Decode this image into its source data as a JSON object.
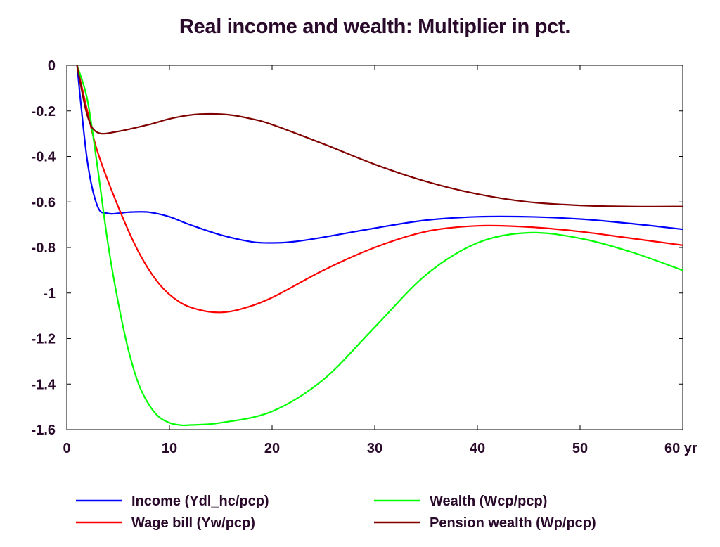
{
  "chart_data": {
    "type": "line",
    "title": "Real income and wealth: Multiplier in pct.",
    "xlabel": "",
    "ylabel": "",
    "xlim": [
      0,
      60
    ],
    "ylim": [
      -1.6,
      0
    ],
    "x_ticks": [
      0,
      10,
      20,
      30,
      40,
      50,
      60
    ],
    "x_tick_labels": [
      "0",
      "10",
      "20",
      "30",
      "40",
      "50",
      "60 yr"
    ],
    "y_ticks": [
      0,
      -0.2,
      -0.4,
      -0.6,
      -0.8,
      -1,
      -1.2,
      -1.4,
      -1.6
    ],
    "y_tick_labels": [
      "0",
      "-0.2",
      "-0.4",
      "-0.6",
      "-0.8",
      "-1",
      "-1.2",
      "-1.4",
      "-1.6"
    ],
    "grid": false,
    "legend_position": "bottom",
    "series": [
      {
        "name": "Income (Ydl_hc/pcp)",
        "color": "#0000ff",
        "x": [
          1,
          2,
          3,
          4,
          5,
          6,
          8,
          10,
          12,
          15,
          18,
          20,
          22,
          25,
          30,
          35,
          40,
          45,
          50,
          55,
          60
        ],
        "y": [
          0,
          -0.42,
          -0.62,
          -0.65,
          -0.65,
          -0.645,
          -0.645,
          -0.665,
          -0.7,
          -0.745,
          -0.775,
          -0.78,
          -0.775,
          -0.755,
          -0.715,
          -0.68,
          -0.665,
          -0.665,
          -0.675,
          -0.695,
          -0.72
        ]
      },
      {
        "name": "Wage bill (Yw/pcp)",
        "color": "#ff0000",
        "x": [
          1,
          2,
          3,
          5,
          7,
          9,
          11,
          13,
          15,
          17,
          20,
          25,
          30,
          35,
          40,
          45,
          50,
          55,
          60
        ],
        "y": [
          0,
          -0.2,
          -0.38,
          -0.62,
          -0.82,
          -0.96,
          -1.04,
          -1.075,
          -1.085,
          -1.07,
          -1.02,
          -0.9,
          -0.8,
          -0.73,
          -0.705,
          -0.71,
          -0.73,
          -0.76,
          -0.79
        ]
      },
      {
        "name": "Wealth (Wcp/pcp)",
        "color": "#00ff00",
        "x": [
          1,
          2,
          3,
          4,
          5,
          6,
          7,
          8,
          9,
          10,
          11,
          12,
          15,
          20,
          25,
          30,
          35,
          40,
          45,
          50,
          55,
          60
        ],
        "y": [
          0,
          -0.15,
          -0.45,
          -0.78,
          -1.04,
          -1.25,
          -1.4,
          -1.49,
          -1.545,
          -1.57,
          -1.58,
          -1.58,
          -1.57,
          -1.52,
          -1.38,
          -1.15,
          -0.92,
          -0.78,
          -0.735,
          -0.76,
          -0.82,
          -0.9
        ]
      },
      {
        "name": "Pension wealth (Wp/pcp)",
        "color": "#800000",
        "x": [
          1,
          2,
          3,
          5,
          8,
          10,
          12,
          14,
          16,
          18,
          20,
          25,
          30,
          35,
          40,
          45,
          50,
          55,
          60
        ],
        "y": [
          0,
          -0.22,
          -0.295,
          -0.29,
          -0.26,
          -0.235,
          -0.218,
          -0.213,
          -0.218,
          -0.235,
          -0.26,
          -0.345,
          -0.435,
          -0.51,
          -0.565,
          -0.6,
          -0.615,
          -0.62,
          -0.62
        ]
      }
    ]
  }
}
